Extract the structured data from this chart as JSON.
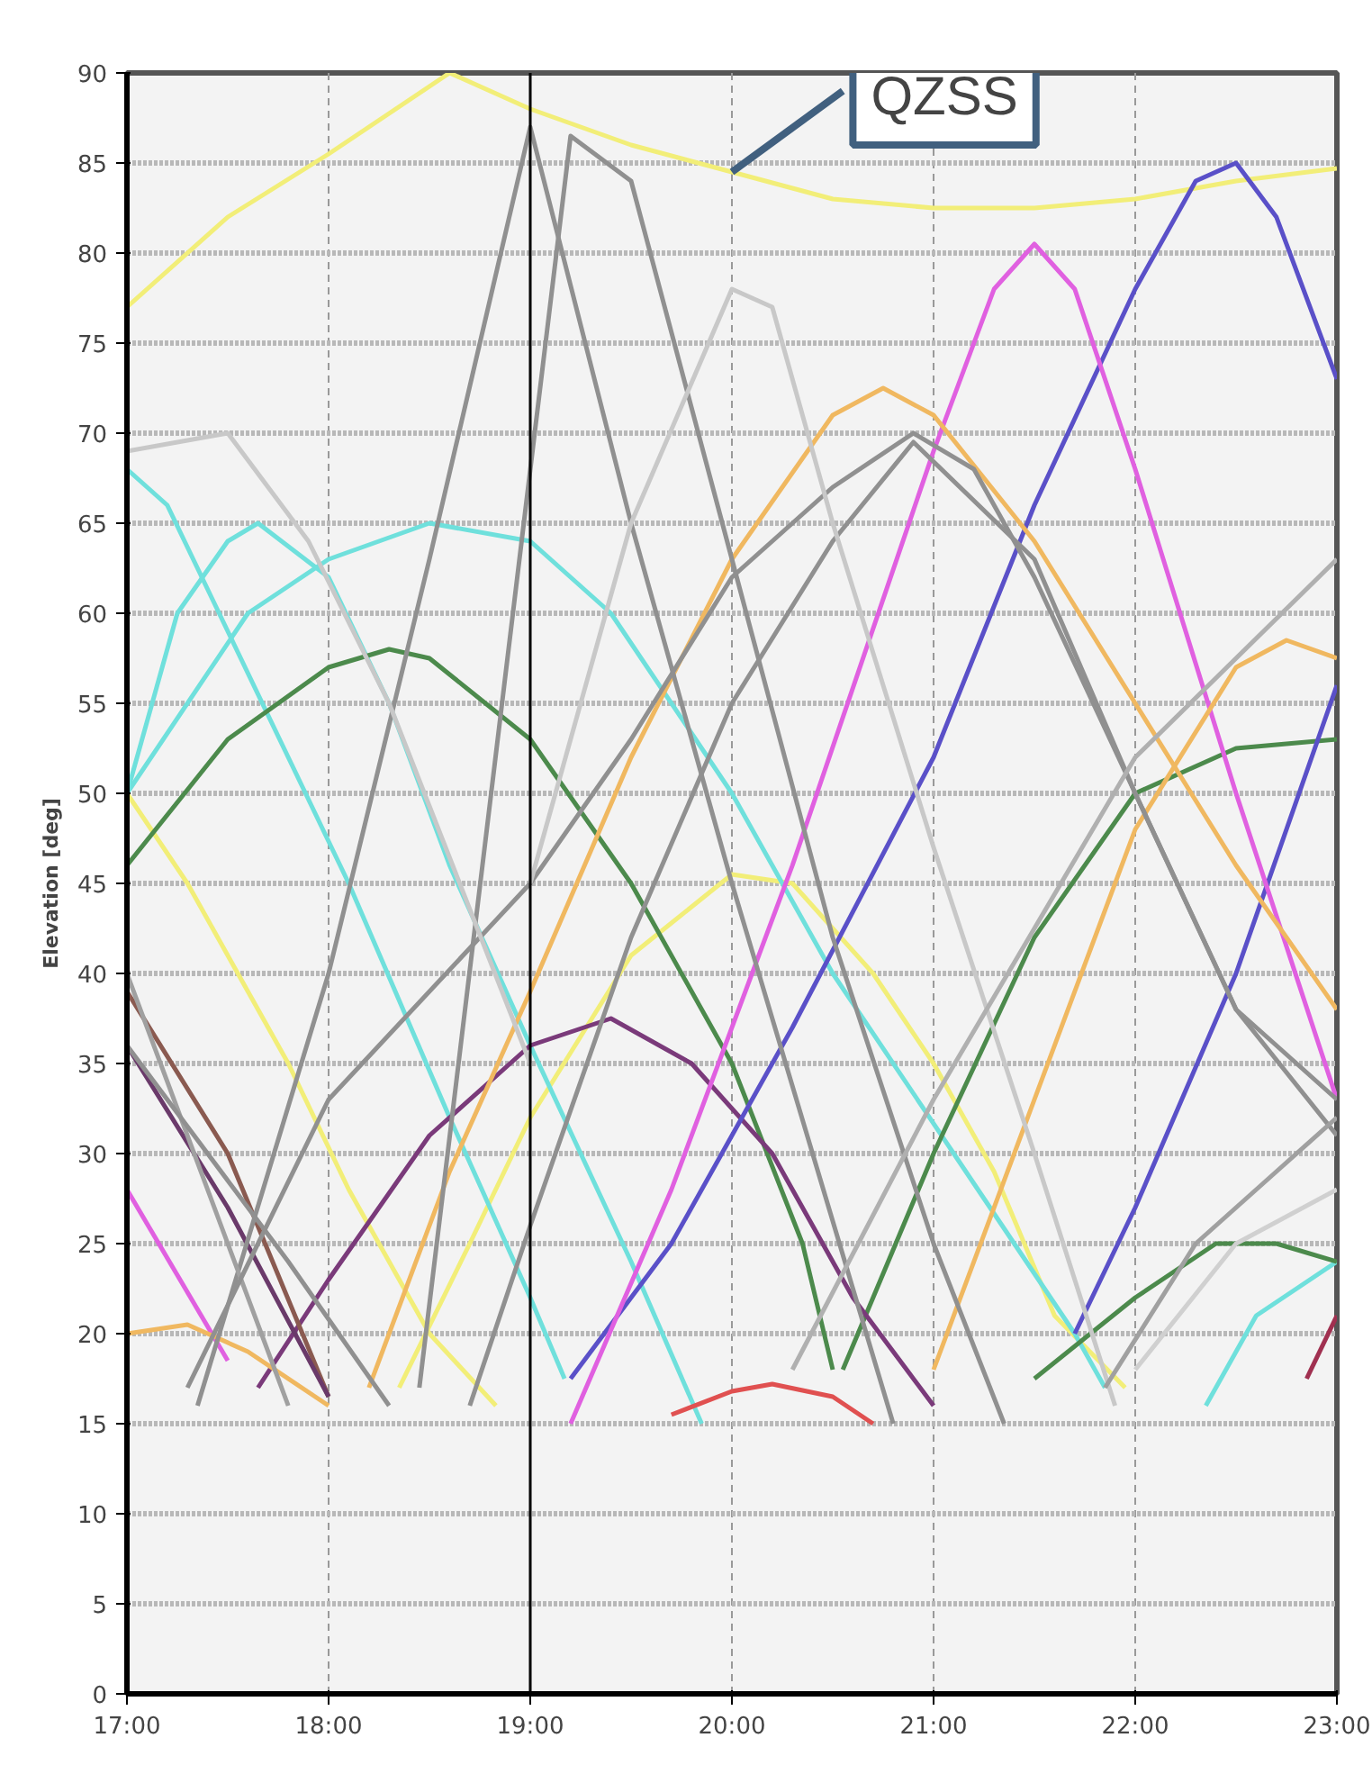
{
  "chart_data": {
    "type": "line",
    "ylabel": "Elevation [deg]",
    "xlim": [
      17,
      23
    ],
    "ylim": [
      0,
      90
    ],
    "xticks": [
      {
        "value": 17,
        "label": "17:00"
      },
      {
        "value": 18,
        "label": "18:00"
      },
      {
        "value": 19,
        "label": "19:00"
      },
      {
        "value": 20,
        "label": "20:00"
      },
      {
        "value": 21,
        "label": "21:00"
      },
      {
        "value": 22,
        "label": "22:00"
      },
      {
        "value": 23,
        "label": "23:00"
      }
    ],
    "yticks": [
      0,
      5,
      10,
      15,
      20,
      25,
      30,
      35,
      40,
      45,
      50,
      55,
      60,
      65,
      70,
      75,
      80,
      85,
      90
    ],
    "grid": true,
    "marker": "none",
    "line_style": "solid",
    "ref_lines": [
      {
        "axis": "x",
        "value": 19,
        "color": "#000000"
      }
    ],
    "annotations": [
      {
        "text": "QZSS",
        "x": 20,
        "y": 84.5
      }
    ],
    "series": [
      {
        "color": "#f2ee78",
        "x": [
          17,
          17.5,
          18,
          18.6,
          19,
          19.5,
          20,
          20.5,
          21,
          21.5,
          22,
          22.5,
          23
        ],
        "values": [
          77,
          82,
          85.5,
          90,
          88,
          86,
          84.5,
          83,
          82.5,
          82.5,
          83,
          84,
          84.7
        ]
      },
      {
        "color": "#f2ee78",
        "x": [
          17,
          17.3,
          17.8,
          18.1,
          18.5,
          18.83
        ],
        "values": [
          50,
          45,
          35,
          28,
          20,
          16
        ]
      },
      {
        "color": "#f2ee78",
        "x": [
          18.35,
          18.7,
          19,
          19.5,
          20,
          20.3,
          20.7,
          21,
          21.3,
          21.6,
          21.95
        ],
        "values": [
          17,
          25,
          32,
          41,
          45.5,
          45,
          40,
          35,
          29,
          21,
          17
        ]
      },
      {
        "color": "#6fe0dc",
        "x": [
          17,
          17.2,
          17.5,
          17.8,
          18.1,
          18.6,
          19,
          19.17
        ],
        "values": [
          68,
          66,
          59,
          52,
          45,
          32,
          22,
          17.5
        ]
      },
      {
        "color": "#6fe0dc",
        "x": [
          17,
          17.25,
          17.5,
          17.65,
          18,
          18.3,
          18.6,
          19,
          19.5,
          19.85
        ],
        "values": [
          50,
          60,
          64,
          65,
          62,
          55,
          46,
          36,
          24,
          15
        ]
      },
      {
        "color": "#6fe0dc",
        "x": [
          17,
          17.6,
          18,
          18.5,
          19,
          19.4,
          20,
          20.5,
          21.1,
          21.7,
          21.85
        ],
        "values": [
          50,
          60,
          63,
          65,
          64,
          60,
          50,
          40,
          30,
          20,
          17
        ]
      },
      {
        "color": "#6fe0dc",
        "x": [
          22.35,
          22.6,
          23
        ],
        "values": [
          16,
          21,
          24
        ]
      },
      {
        "color": "#4c8a4c",
        "x": [
          17,
          17.5,
          18,
          18.3,
          18.5,
          19,
          19.5,
          20,
          20.35,
          20.5
        ],
        "values": [
          46,
          53,
          57,
          58,
          57.5,
          53,
          45,
          35,
          25,
          18
        ]
      },
      {
        "color": "#4c8a4c",
        "x": [
          20.55,
          21,
          21.5,
          22,
          22.5,
          23
        ],
        "values": [
          18,
          30,
          42,
          50,
          52.5,
          53
        ]
      },
      {
        "color": "#4c8a4c",
        "x": [
          21.5,
          22,
          22.4,
          22.7,
          23
        ],
        "values": [
          17.5,
          22,
          25,
          25,
          24
        ]
      },
      {
        "color": "#7a3a7a",
        "x": [
          17.65,
          18,
          18.5,
          19,
          19.4,
          19.8,
          20.2,
          20.6,
          21
        ],
        "values": [
          17,
          23,
          31,
          36,
          37.5,
          35,
          30,
          22,
          16
        ]
      },
      {
        "color": "#5a50c8",
        "x": [
          19.2,
          19.7,
          20.3,
          21,
          21.5,
          22,
          22.3,
          22.5,
          22.7,
          23
        ],
        "values": [
          17.5,
          25,
          37,
          52,
          66,
          78,
          84,
          85,
          82,
          73
        ]
      },
      {
        "color": "#5a50c8",
        "x": [
          21.7,
          22,
          22.5,
          23
        ],
        "values": [
          20,
          27,
          40,
          56
        ]
      },
      {
        "color": "#e060e0",
        "x": [
          19.2,
          19.7,
          20.3,
          21,
          21.3,
          21.5,
          21.7,
          22,
          22.5,
          23
        ],
        "values": [
          15,
          28,
          46,
          69,
          78,
          80.5,
          78,
          68,
          50,
          33
        ]
      },
      {
        "color": "#e060e0",
        "x": [
          17,
          17.5
        ],
        "values": [
          28,
          18.5
        ]
      },
      {
        "color": "#f0b860",
        "x": [
          18.2,
          18.6,
          19,
          19.5,
          20,
          20.5,
          20.75,
          21,
          21.5,
          22,
          22.5,
          23
        ],
        "values": [
          17,
          29,
          39,
          52,
          63,
          71,
          72.5,
          71,
          64,
          55,
          46,
          38
        ]
      },
      {
        "color": "#f0b860",
        "x": [
          21,
          21.5,
          22,
          22.5,
          22.75,
          23
        ],
        "values": [
          18,
          33,
          48,
          57,
          58.5,
          57.5
        ]
      },
      {
        "color": "#f0b860",
        "x": [
          17,
          17.3,
          17.6,
          18
        ],
        "values": [
          20,
          20.5,
          19,
          16
        ]
      },
      {
        "color": "#e05050",
        "x": [
          19.7,
          20,
          20.2,
          20.5,
          20.7
        ],
        "values": [
          15.5,
          16.8,
          17.2,
          16.5,
          15
        ]
      },
      {
        "color": "#a03050",
        "x": [
          22.85,
          23
        ],
        "values": [
          17.5,
          21
        ]
      },
      {
        "color": "#8a5a50",
        "x": [
          17,
          17.5,
          18
        ],
        "values": [
          39,
          30,
          16.5
        ]
      },
      {
        "color": "#6a3a6a",
        "x": [
          17,
          17.5,
          18
        ],
        "values": [
          36,
          27,
          16.5
        ]
      },
      {
        "color": "#909090",
        "x": [
          17.35,
          18,
          18.5,
          19,
          19.5,
          20,
          20.4,
          20.8
        ],
        "values": [
          16,
          40,
          63,
          87,
          65,
          45,
          30,
          15
        ]
      },
      {
        "color": "#909090",
        "x": [
          18.45,
          19.2,
          19.5,
          20,
          20.5,
          21,
          21.35
        ],
        "values": [
          17,
          86.5,
          84,
          63,
          42,
          25,
          15
        ]
      },
      {
        "color": "#a0a0a0",
        "x": [
          17,
          17.5,
          17.8
        ],
        "values": [
          40,
          25,
          16
        ]
      },
      {
        "color": "#909090",
        "x": [
          17,
          17.8,
          18.3
        ],
        "values": [
          36,
          24,
          16
        ]
      },
      {
        "color": "#909090",
        "x": [
          17.3,
          18,
          19,
          19.5,
          20,
          20.5,
          20.9,
          21.2,
          21.5,
          22,
          22.5,
          23
        ],
        "values": [
          17,
          33,
          45,
          53,
          62,
          67,
          70,
          68,
          62,
          50,
          38,
          31
        ]
      },
      {
        "color": "#909090",
        "x": [
          18.7,
          19,
          19.5,
          20,
          20.5,
          20.9,
          21.5,
          22,
          22.5,
          23
        ],
        "values": [
          16,
          26,
          42,
          55,
          64,
          69.5,
          63,
          50,
          38,
          33
        ]
      },
      {
        "color": "#c8c8c8",
        "x": [
          17,
          17.5,
          17.9,
          18.3,
          19
        ],
        "values": [
          69,
          70,
          64,
          55,
          35
        ]
      },
      {
        "color": "#c8c8c8",
        "x": [
          19,
          19.5,
          20,
          20.2,
          20.5,
          21,
          21.5,
          21.9
        ],
        "values": [
          45,
          65,
          78,
          77,
          65,
          47,
          30,
          16
        ]
      },
      {
        "color": "#b0b0b0",
        "x": [
          20.3,
          21,
          22,
          23
        ],
        "values": [
          18,
          33,
          52,
          63
        ]
      },
      {
        "color": "#a0a0a0",
        "x": [
          21.85,
          22.3,
          22.7,
          23
        ],
        "values": [
          17,
          25,
          29,
          32
        ]
      },
      {
        "color": "#d0d0d0",
        "x": [
          22,
          22.5,
          23
        ],
        "values": [
          18,
          25,
          28
        ]
      }
    ]
  }
}
